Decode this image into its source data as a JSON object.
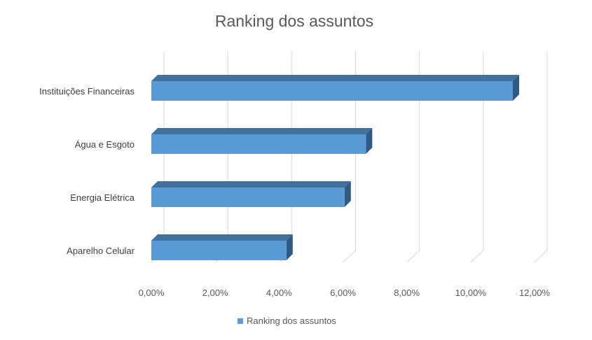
{
  "chart_data": {
    "type": "bar",
    "orientation": "horizontal",
    "title": "Ranking dos assuntos",
    "xlabel": "",
    "ylabel": "",
    "categories": [
      "Instituições Financeiras",
      "Água e Esgoto",
      "Energia Elétrica",
      "Aparelho Celular"
    ],
    "series": [
      {
        "name": "Ranking dos assuntos",
        "values": [
          0.1132,
          0.0672,
          0.0605,
          0.0423
        ],
        "color": "#5B9BD5"
      }
    ],
    "xlim": [
      0,
      0.12
    ],
    "x_ticks": [
      0,
      0.02,
      0.04,
      0.06,
      0.08,
      0.1,
      0.12
    ],
    "x_tick_labels": [
      "0,00%",
      "2,00%",
      "4,00%",
      "6,00%",
      "8,00%",
      "10,00%",
      "12,00%"
    ],
    "grid": true,
    "legend_position": "bottom",
    "style": "3d"
  }
}
